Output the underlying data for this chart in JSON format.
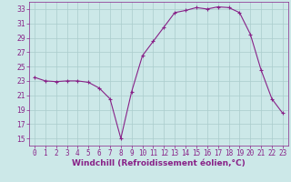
{
  "x": [
    0,
    1,
    2,
    3,
    4,
    5,
    6,
    7,
    8,
    9,
    10,
    11,
    12,
    13,
    14,
    15,
    16,
    17,
    18,
    19,
    20,
    21,
    22,
    23
  ],
  "y": [
    23.5,
    23.0,
    22.9,
    23.0,
    23.0,
    22.8,
    22.0,
    20.5,
    15.0,
    21.5,
    26.5,
    28.5,
    30.5,
    32.5,
    32.8,
    33.2,
    33.0,
    33.3,
    33.2,
    32.5,
    29.5,
    24.5,
    20.5,
    18.5
  ],
  "line_color": "#882288",
  "marker": "+",
  "marker_color": "#882288",
  "bg_color": "#cce8e8",
  "grid_color": "#aacccc",
  "axis_color": "#882288",
  "xlabel": "Windchill (Refroidissement éolien,°C)",
  "xlabel_fontsize": 6.5,
  "tick_fontsize": 5.5,
  "ylim": [
    14,
    34
  ],
  "yticks": [
    15,
    17,
    19,
    21,
    23,
    25,
    27,
    29,
    31,
    33
  ],
  "xlim": [
    -0.5,
    23.5
  ],
  "xticks": [
    0,
    1,
    2,
    3,
    4,
    5,
    6,
    7,
    8,
    9,
    10,
    11,
    12,
    13,
    14,
    15,
    16,
    17,
    18,
    19,
    20,
    21,
    22,
    23
  ]
}
